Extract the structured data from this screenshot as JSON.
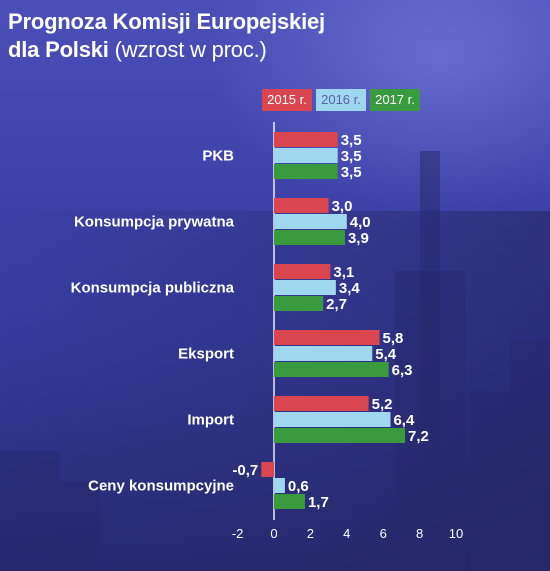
{
  "title": {
    "line1": "Prognoza Komisji Europejskiej",
    "line2_bold": "dla Polski",
    "line2_light": "(wzrost w proc.)"
  },
  "legend": [
    {
      "label": "2015 r.",
      "color": "#d9464f",
      "text_color": "#ffffff"
    },
    {
      "label": "2016 r.",
      "color": "#9fd7ee",
      "text_color": "#5a5fa8"
    },
    {
      "label": "2017 r.",
      "color": "#3a9a3e",
      "text_color": "#ffffff"
    }
  ],
  "chart_data": {
    "type": "bar",
    "orientation": "horizontal",
    "categories": [
      "PKB",
      "Konsumpcja prywatna",
      "Konsumpcja publiczna",
      "Eksport",
      "Import",
      "Ceny konsumpcyjne"
    ],
    "series": [
      {
        "name": "2015 r.",
        "values": [
          3.5,
          3.0,
          3.1,
          5.8,
          5.2,
          -0.7
        ],
        "labels": [
          "3,5",
          "3,0",
          "3,1",
          "5,8",
          "5,2",
          "-0,7"
        ],
        "color": "#d9464f"
      },
      {
        "name": "2016 r.",
        "values": [
          3.5,
          4.0,
          3.4,
          5.4,
          6.4,
          0.6
        ],
        "labels": [
          "3,5",
          "4,0",
          "3,4",
          "5,4",
          "6,4",
          "0,6"
        ],
        "color": "#9fd7ee"
      },
      {
        "name": "2017 r.",
        "values": [
          3.5,
          3.9,
          2.7,
          6.3,
          7.2,
          1.7
        ],
        "labels": [
          "3,5",
          "3,9",
          "2,7",
          "6,3",
          "7,2",
          "1,7"
        ],
        "color": "#3a9a3e"
      }
    ],
    "xlim": [
      -2,
      10
    ],
    "xticks": [
      -2,
      0,
      2,
      4,
      6,
      8,
      10
    ],
    "xtick_labels": [
      "-2",
      "0",
      "2",
      "4",
      "6",
      "8",
      "10"
    ],
    "legend_position": "top"
  }
}
